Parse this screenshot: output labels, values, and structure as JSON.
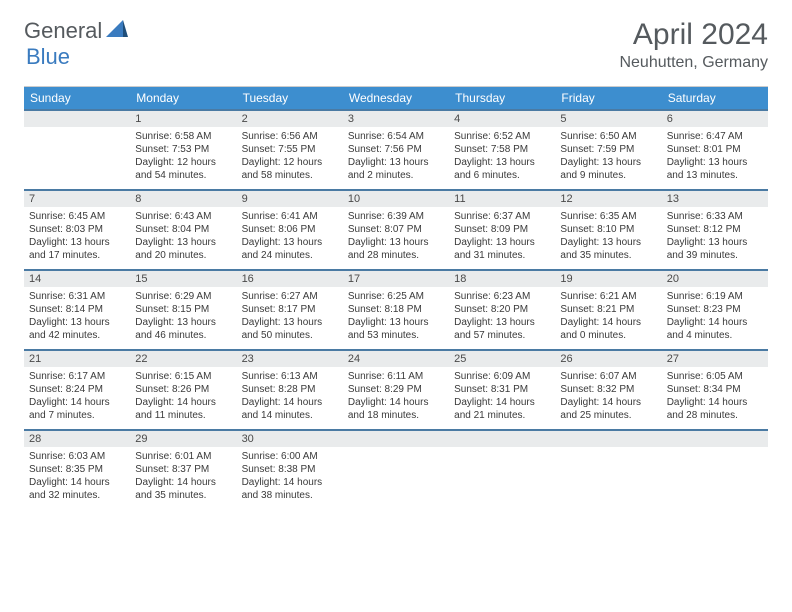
{
  "logo": {
    "general": "General",
    "blue": "Blue"
  },
  "title": "April 2024",
  "location": "Neuhutten, Germany",
  "colors": {
    "header_bg": "#3d8ecf",
    "header_text": "#ffffff",
    "daynum_bg": "#e9ebec",
    "daynum_border": "#4a7aa3",
    "text": "#3a3a3a",
    "logo_gray": "#555a5e",
    "logo_blue": "#3a7bbf"
  },
  "day_names": [
    "Sunday",
    "Monday",
    "Tuesday",
    "Wednesday",
    "Thursday",
    "Friday",
    "Saturday"
  ],
  "weeks": [
    {
      "nums": [
        "",
        "1",
        "2",
        "3",
        "4",
        "5",
        "6"
      ],
      "info": [
        "",
        "Sunrise: 6:58 AM\nSunset: 7:53 PM\nDaylight: 12 hours and 54 minutes.",
        "Sunrise: 6:56 AM\nSunset: 7:55 PM\nDaylight: 12 hours and 58 minutes.",
        "Sunrise: 6:54 AM\nSunset: 7:56 PM\nDaylight: 13 hours and 2 minutes.",
        "Sunrise: 6:52 AM\nSunset: 7:58 PM\nDaylight: 13 hours and 6 minutes.",
        "Sunrise: 6:50 AM\nSunset: 7:59 PM\nDaylight: 13 hours and 9 minutes.",
        "Sunrise: 6:47 AM\nSunset: 8:01 PM\nDaylight: 13 hours and 13 minutes."
      ]
    },
    {
      "nums": [
        "7",
        "8",
        "9",
        "10",
        "11",
        "12",
        "13"
      ],
      "info": [
        "Sunrise: 6:45 AM\nSunset: 8:03 PM\nDaylight: 13 hours and 17 minutes.",
        "Sunrise: 6:43 AM\nSunset: 8:04 PM\nDaylight: 13 hours and 20 minutes.",
        "Sunrise: 6:41 AM\nSunset: 8:06 PM\nDaylight: 13 hours and 24 minutes.",
        "Sunrise: 6:39 AM\nSunset: 8:07 PM\nDaylight: 13 hours and 28 minutes.",
        "Sunrise: 6:37 AM\nSunset: 8:09 PM\nDaylight: 13 hours and 31 minutes.",
        "Sunrise: 6:35 AM\nSunset: 8:10 PM\nDaylight: 13 hours and 35 minutes.",
        "Sunrise: 6:33 AM\nSunset: 8:12 PM\nDaylight: 13 hours and 39 minutes."
      ]
    },
    {
      "nums": [
        "14",
        "15",
        "16",
        "17",
        "18",
        "19",
        "20"
      ],
      "info": [
        "Sunrise: 6:31 AM\nSunset: 8:14 PM\nDaylight: 13 hours and 42 minutes.",
        "Sunrise: 6:29 AM\nSunset: 8:15 PM\nDaylight: 13 hours and 46 minutes.",
        "Sunrise: 6:27 AM\nSunset: 8:17 PM\nDaylight: 13 hours and 50 minutes.",
        "Sunrise: 6:25 AM\nSunset: 8:18 PM\nDaylight: 13 hours and 53 minutes.",
        "Sunrise: 6:23 AM\nSunset: 8:20 PM\nDaylight: 13 hours and 57 minutes.",
        "Sunrise: 6:21 AM\nSunset: 8:21 PM\nDaylight: 14 hours and 0 minutes.",
        "Sunrise: 6:19 AM\nSunset: 8:23 PM\nDaylight: 14 hours and 4 minutes."
      ]
    },
    {
      "nums": [
        "21",
        "22",
        "23",
        "24",
        "25",
        "26",
        "27"
      ],
      "info": [
        "Sunrise: 6:17 AM\nSunset: 8:24 PM\nDaylight: 14 hours and 7 minutes.",
        "Sunrise: 6:15 AM\nSunset: 8:26 PM\nDaylight: 14 hours and 11 minutes.",
        "Sunrise: 6:13 AM\nSunset: 8:28 PM\nDaylight: 14 hours and 14 minutes.",
        "Sunrise: 6:11 AM\nSunset: 8:29 PM\nDaylight: 14 hours and 18 minutes.",
        "Sunrise: 6:09 AM\nSunset: 8:31 PM\nDaylight: 14 hours and 21 minutes.",
        "Sunrise: 6:07 AM\nSunset: 8:32 PM\nDaylight: 14 hours and 25 minutes.",
        "Sunrise: 6:05 AM\nSunset: 8:34 PM\nDaylight: 14 hours and 28 minutes."
      ]
    },
    {
      "nums": [
        "28",
        "29",
        "30",
        "",
        "",
        "",
        ""
      ],
      "info": [
        "Sunrise: 6:03 AM\nSunset: 8:35 PM\nDaylight: 14 hours and 32 minutes.",
        "Sunrise: 6:01 AM\nSunset: 8:37 PM\nDaylight: 14 hours and 35 minutes.",
        "Sunrise: 6:00 AM\nSunset: 8:38 PM\nDaylight: 14 hours and 38 minutes.",
        "",
        "",
        "",
        ""
      ]
    }
  ]
}
